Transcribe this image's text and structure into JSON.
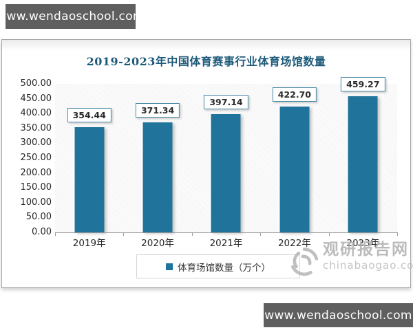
{
  "watermarks": {
    "top_left": "www.wendaoschool.com",
    "bottom_right": "www.wendaoschool.com",
    "brand_name": "观研报告网",
    "brand_site": "chinabaogao.com"
  },
  "chart_data": {
    "type": "bar",
    "title": "2019-2023年中国体育赛事行业体育场馆数量",
    "categories": [
      "2019年",
      "2020年",
      "2021年",
      "2022年",
      "2023年"
    ],
    "values": [
      354.44,
      371.34,
      397.14,
      422.7,
      459.27
    ],
    "value_labels": [
      "354.44",
      "371.34",
      "397.14",
      "422.70",
      "459.27"
    ],
    "legend": "体育场馆数量（万个）",
    "xlabel": "",
    "ylabel": "",
    "ylim": [
      0,
      500
    ],
    "y_ticks": [
      "500.00",
      "450.00",
      "400.00",
      "350.00",
      "300.00",
      "250.00",
      "200.00",
      "150.00",
      "100.00",
      "50.00",
      "0.00"
    ],
    "grid": false,
    "legend_position": "bottom",
    "bar_color": "#20739b",
    "title_color": "#1d5a7a",
    "watermark_gray": "#b3b3b3"
  }
}
